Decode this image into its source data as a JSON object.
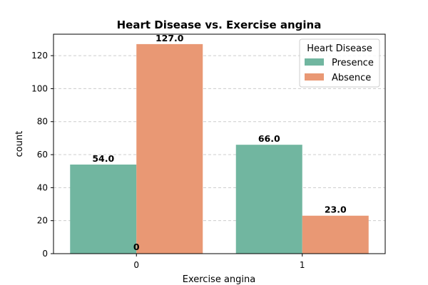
{
  "chart_data": {
    "type": "bar",
    "title": "Heart Disease vs. Exercise angina",
    "xlabel": "Exercise angina",
    "ylabel": "count",
    "categories": [
      "0",
      "1"
    ],
    "series": [
      {
        "name": "Presence",
        "values": [
          54,
          66
        ],
        "color": "#71b6a0"
      },
      {
        "name": "Absence",
        "values": [
          127,
          23
        ],
        "color": "#e99874"
      }
    ],
    "bar_labels": [
      {
        "category": "0",
        "series": "Presence",
        "text": "54.0"
      },
      {
        "category": "0",
        "series": "Absence",
        "text": "127.0"
      },
      {
        "category": "1",
        "series": "Presence",
        "text": "66.0"
      },
      {
        "category": "1",
        "series": "Absence",
        "text": "23.0"
      }
    ],
    "extra_annotation": {
      "category": "0",
      "text": "0",
      "y": 0
    },
    "ylim": [
      0,
      133
    ],
    "yticks": [
      0,
      20,
      40,
      60,
      80,
      100,
      120
    ],
    "grid": "y-dashed",
    "legend": {
      "title": "Heart Disease",
      "placement": "top-right"
    }
  }
}
